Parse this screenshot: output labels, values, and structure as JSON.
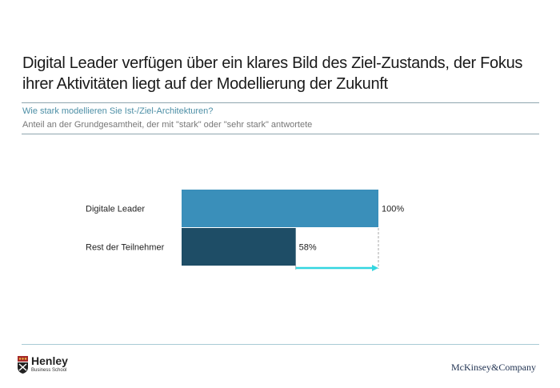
{
  "header": {
    "title": "Digital Leader verfügen über ein klares Bild des Ziel-Zustands, der Fokus ihrer Aktivitäten liegt auf der Modellierung der Zukunft",
    "question": "Wie stark modellieren Sie Ist-/Ziel-Architekturen?",
    "description": "Anteil an der Grundgesamtheit, der mit \"stark\" oder \"sehr stark\" antwortete"
  },
  "chart_data": {
    "type": "bar",
    "orientation": "horizontal",
    "title": "Wie stark modellieren Sie Ist-/Ziel-Architekturen?",
    "subtitle": "Anteil an der Grundgesamtheit, der mit \"stark\" oder \"sehr stark\" antwortete",
    "categories": [
      "Digitale Leader",
      "Rest der Teilnehmer"
    ],
    "values": [
      100,
      58
    ],
    "value_labels": [
      "100%",
      "58%"
    ],
    "colors": [
      "#3a8fba",
      "#1e4d66"
    ],
    "xlim": [
      0,
      100
    ],
    "unit": "%",
    "annotation": {
      "type": "gap-arrow",
      "from": 58,
      "to": 100,
      "color": "#33d6e0"
    },
    "grid": false,
    "legend": "none"
  },
  "footer": {
    "left_logo_name": "Henley",
    "left_logo_sub": "Business School",
    "right_logo": "McKinsey&Company"
  }
}
